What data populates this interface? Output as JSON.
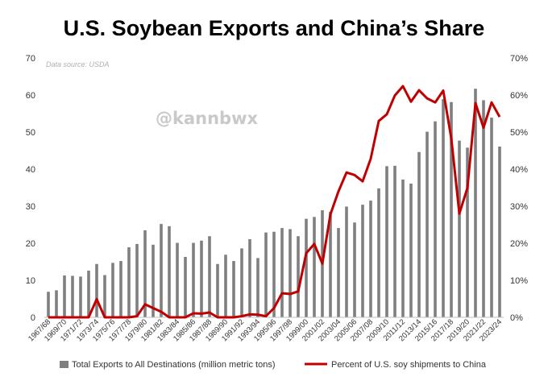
{
  "chart_data": {
    "type": "bar+line",
    "title": "U.S. Soybean Exports and China’s Share",
    "source_note": "Data source: USDA",
    "watermark": "@kannbwx",
    "xlabel": "",
    "ylabel_left": "",
    "ylabel_right": "",
    "ylim_left": [
      0,
      70
    ],
    "yticks_left": [
      "0",
      "10",
      "20",
      "30",
      "40",
      "50",
      "60",
      "70"
    ],
    "ylim_right": [
      0,
      70
    ],
    "yticks_right": [
      "0%",
      "10%",
      "20%",
      "30%",
      "40%",
      "50%",
      "60%",
      "70%"
    ],
    "grid": false,
    "legend_position": "bottom",
    "categories": [
      "1967/68",
      "1968/69",
      "1969/70",
      "1970/71",
      "1971/72",
      "1972/73",
      "1973/74",
      "1974/75",
      "1975/76",
      "1976/77",
      "1977/78",
      "1978/79",
      "1979/80",
      "1980/81",
      "1981/82",
      "1982/83",
      "1983/84",
      "1984/85",
      "1985/86",
      "1986/87",
      "1987/88",
      "1988/89",
      "1989/90",
      "1990/91",
      "1991/92",
      "1992/93",
      "1993/94",
      "1994/95",
      "1995/96",
      "1996/97",
      "1997/98",
      "1998/99",
      "1999/00",
      "2000/01",
      "2001/02",
      "2002/03",
      "2003/04",
      "2004/05",
      "2005/06",
      "2006/07",
      "2007/08",
      "2008/09",
      "2009/10",
      "2010/11",
      "2011/12",
      "2012/13",
      "2013/14",
      "2014/15",
      "2015/16",
      "2016/17",
      "2017/18",
      "2018/19",
      "2019/20",
      "2020/21",
      "2021/22",
      "2022/23",
      "2023/24"
    ],
    "tick_labels": [
      "1967/68",
      "1969/70",
      "1971/72",
      "1973/74",
      "1975/76",
      "1977/78",
      "1979/80",
      "1981/82",
      "1983/84",
      "1985/86",
      "1987/88",
      "1989/90",
      "1991/92",
      "1993/94",
      "1995/96",
      "1997/98",
      "1999/00",
      "2001/02",
      "2003/04",
      "2005/06",
      "2007/08",
      "2009/10",
      "2011/12",
      "2013/14",
      "2015/16",
      "2017/18",
      "2019/20",
      "2021/22",
      "2023/24"
    ],
    "series": [
      {
        "name": "Total Exports to All Destinations (million metric tons)",
        "type": "bar",
        "axis": "left",
        "color": "#7f7f7f",
        "values": [
          6.9,
          7.3,
          11.3,
          11.2,
          11.0,
          12.6,
          14.4,
          11.4,
          14.7,
          15.2,
          18.9,
          19.8,
          23.5,
          19.6,
          25.2,
          24.6,
          20.1,
          16.3,
          20.1,
          20.7,
          21.9,
          14.4,
          16.9,
          15.2,
          18.6,
          21.1,
          16.0,
          22.9,
          23.1,
          24.1,
          23.8,
          21.9,
          26.6,
          27.1,
          28.9,
          28.5,
          24.1,
          29.9,
          25.6,
          30.4,
          31.5,
          34.8,
          40.8,
          40.9,
          37.2,
          36.1,
          44.6,
          50.1,
          52.9,
          58.9,
          58.1,
          47.7,
          45.8,
          61.7,
          58.6,
          53.9,
          46.1
        ]
      },
      {
        "name": "Percent of U.S. soy shipments to China",
        "type": "line",
        "axis": "right",
        "color": "#c00000",
        "values": [
          0,
          0,
          0,
          0,
          0,
          0,
          4.9,
          0,
          0,
          0,
          0,
          0.3,
          3.5,
          2.5,
          1.5,
          0,
          0,
          0,
          1.1,
          1.0,
          1.3,
          0,
          0,
          0,
          0.3,
          0.8,
          0.7,
          0.3,
          2.5,
          6.5,
          6.3,
          7.0,
          17.3,
          19.8,
          14.5,
          27.8,
          34.0,
          39.1,
          38.4,
          36.7,
          42.8,
          53.0,
          54.8,
          59.9,
          62.4,
          58.2,
          61.3,
          59.1,
          58.0,
          61.2,
          48.3,
          28.0,
          34.9,
          57.8,
          51.2,
          58.0,
          54.1
        ]
      }
    ]
  }
}
